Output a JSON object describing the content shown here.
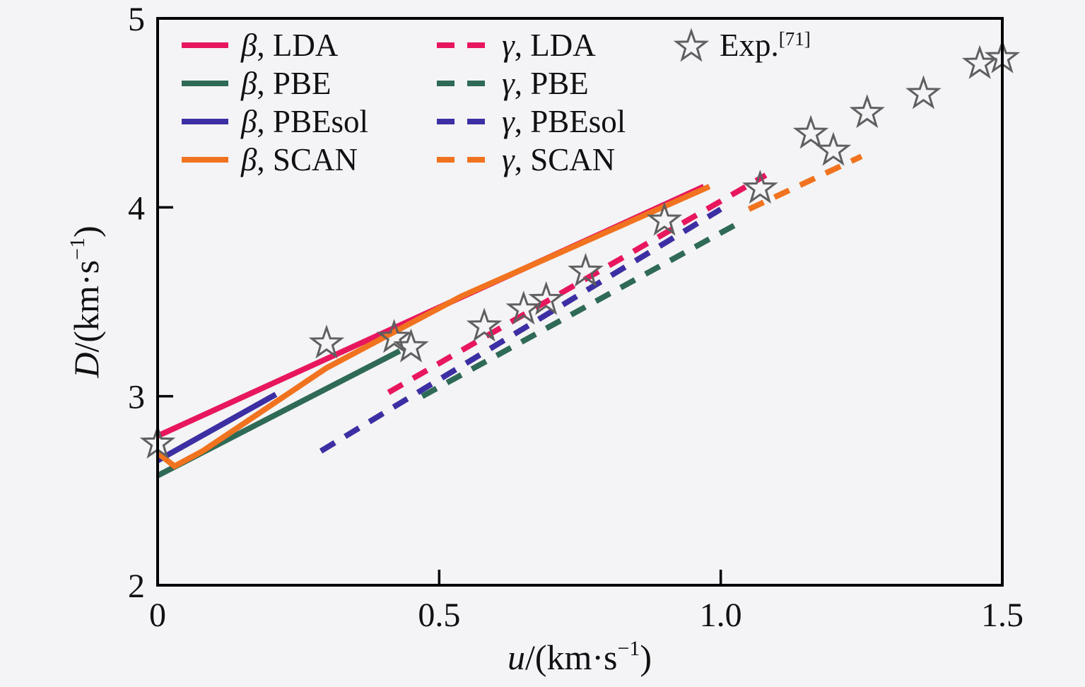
{
  "figure": {
    "background": "#f4f3f5",
    "frame_color": "#000000",
    "text_color": "#111111",
    "star_color": "#5f5f5f"
  },
  "axes": {
    "ylabel_parts": {
      "variable": "D",
      "unit_prefix": "/(km·s",
      "sup": "−1",
      "unit_suffix": ")"
    },
    "xlabel_parts": {
      "variable": "u",
      "unit_prefix": "/(km·s",
      "sup": "−1",
      "unit_suffix": ")"
    }
  },
  "legend": {
    "exp_label": "Exp.",
    "exp_ref": "[71]"
  },
  "chart_data": {
    "type": "line",
    "title": "",
    "xlabel": "u/(km·s⁻¹)",
    "ylabel": "D/(km·s⁻¹)",
    "xlim": [
      0,
      1.5
    ],
    "ylim": [
      2,
      5
    ],
    "grid": false,
    "legend_position": "upper-left, three columns inside plot",
    "xticks": [
      {
        "value": 0,
        "label": "0"
      },
      {
        "value": 0.5,
        "label": "0.5"
      },
      {
        "value": 1.0,
        "label": "1.0"
      },
      {
        "value": 1.5,
        "label": "1.5"
      }
    ],
    "yticks": [
      {
        "value": 2,
        "label": "2"
      },
      {
        "value": 3,
        "label": "3"
      },
      {
        "value": 4,
        "label": "4"
      },
      {
        "value": 5,
        "label": "5"
      }
    ],
    "series": [
      {
        "name": "β, LDA",
        "phase": "β",
        "functional": "LDA",
        "style": "solid",
        "color": "#e8175d",
        "points": [
          [
            0,
            2.79
          ],
          [
            0.97,
            4.11
          ]
        ]
      },
      {
        "name": "β, PBE",
        "phase": "β",
        "functional": "PBE",
        "style": "solid",
        "color": "#2f6a56",
        "points": [
          [
            0,
            2.58
          ],
          [
            0.43,
            3.24
          ]
        ]
      },
      {
        "name": "β, PBEsol",
        "phase": "β",
        "functional": "PBEsol",
        "style": "solid",
        "color": "#3c2fa3",
        "points": [
          [
            0,
            2.66
          ],
          [
            0.21,
            3.01
          ]
        ]
      },
      {
        "name": "β, SCAN",
        "phase": "β",
        "functional": "SCAN",
        "style": "solid",
        "color": "#f1731f",
        "points": [
          [
            0,
            2.7
          ],
          [
            0.03,
            2.63
          ],
          [
            0.08,
            2.71
          ],
          [
            0.3,
            3.15
          ],
          [
            0.54,
            3.53
          ],
          [
            0.98,
            4.11
          ]
        ]
      },
      {
        "name": "γ, LDA",
        "phase": "γ",
        "functional": "LDA",
        "style": "dashed",
        "color": "#e8175d",
        "points": [
          [
            0.41,
            3.02
          ],
          [
            1.08,
            4.17
          ]
        ]
      },
      {
        "name": "γ, PBE",
        "phase": "γ",
        "functional": "PBE",
        "style": "dashed",
        "color": "#2f6a56",
        "points": [
          [
            0.47,
            3.0
          ],
          [
            1.04,
            3.93
          ]
        ]
      },
      {
        "name": "γ, PBEsol",
        "phase": "γ",
        "functional": "PBEsol",
        "style": "dashed",
        "color": "#3c2fa3",
        "points": [
          [
            0.29,
            2.71
          ],
          [
            1.0,
            3.99
          ]
        ]
      },
      {
        "name": "γ, SCAN",
        "phase": "γ",
        "functional": "SCAN",
        "style": "dashed",
        "color": "#f1731f",
        "points": [
          [
            1.05,
            3.99
          ],
          [
            1.25,
            4.27
          ]
        ]
      }
    ],
    "experimental": {
      "name": "Exp.",
      "reference": "[71]",
      "marker": "open-star",
      "color": "#5f5f5f",
      "points": [
        [
          0.0,
          2.75
        ],
        [
          0.3,
          3.28
        ],
        [
          0.42,
          3.31
        ],
        [
          0.45,
          3.26
        ],
        [
          0.58,
          3.37
        ],
        [
          0.65,
          3.46
        ],
        [
          0.69,
          3.51
        ],
        [
          0.76,
          3.66
        ],
        [
          0.9,
          3.93
        ],
        [
          1.07,
          4.1
        ],
        [
          1.16,
          4.39
        ],
        [
          1.2,
          4.3
        ],
        [
          1.26,
          4.5
        ],
        [
          1.36,
          4.6
        ],
        [
          1.46,
          4.76
        ],
        [
          1.5,
          4.79
        ]
      ]
    }
  }
}
